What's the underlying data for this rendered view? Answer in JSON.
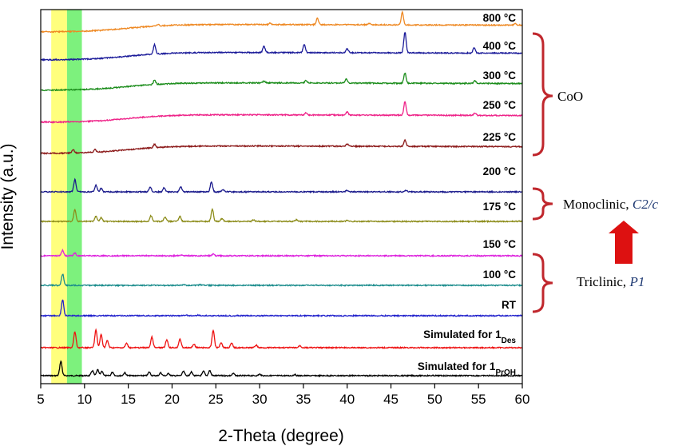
{
  "chart_data": {
    "type": "line",
    "xlabel": "2-Theta (degree)",
    "ylabel": "Intensity (a.u.)",
    "xlim": [
      5,
      60
    ],
    "xticks": [
      5,
      10,
      15,
      20,
      25,
      30,
      35,
      40,
      45,
      50,
      55,
      60
    ],
    "yticks": "none",
    "highlight_bands": [
      {
        "range": [
          6.2,
          8.0
        ],
        "color": "#ffff66"
      },
      {
        "range": [
          8.0,
          9.7
        ],
        "color": "#66ee66"
      }
    ],
    "series": [
      {
        "name": "Simulated for 1PrOH",
        "label_main": "Simulated for 1",
        "label_sub": "PrOH",
        "color": "#000000",
        "baseline": 0.0,
        "peaks": [
          [
            7.3,
            1.0
          ],
          [
            10.9,
            0.35
          ],
          [
            11.5,
            0.4
          ],
          [
            12.0,
            0.3
          ],
          [
            13.2,
            0.25
          ],
          [
            14.6,
            0.2
          ],
          [
            17.4,
            0.25
          ],
          [
            18.7,
            0.2
          ],
          [
            19.6,
            0.15
          ],
          [
            21.3,
            0.3
          ],
          [
            22.2,
            0.25
          ],
          [
            23.6,
            0.3
          ],
          [
            24.3,
            0.35
          ],
          [
            27.0,
            0.15
          ],
          [
            30.0,
            0.1
          ],
          [
            34.0,
            0.08
          ]
        ]
      },
      {
        "name": "Simulated for 1Des",
        "label_main": "Simulated for 1",
        "label_sub": "Des",
        "color": "#ee1111",
        "baseline": 0.0,
        "peaks": [
          [
            8.9,
            0.9
          ],
          [
            11.3,
            1.0
          ],
          [
            11.9,
            0.75
          ],
          [
            12.6,
            0.4
          ],
          [
            14.8,
            0.25
          ],
          [
            17.7,
            0.6
          ],
          [
            19.4,
            0.45
          ],
          [
            20.9,
            0.5
          ],
          [
            22.5,
            0.2
          ],
          [
            24.7,
            1.0
          ],
          [
            25.6,
            0.3
          ],
          [
            26.8,
            0.25
          ],
          [
            29.6,
            0.15
          ],
          [
            34.6,
            0.12
          ]
        ]
      },
      {
        "name": "RT",
        "label_main": "RT",
        "color": "#2222cc",
        "baseline": 0.0,
        "peaks": [
          [
            7.5,
            1.0
          ],
          [
            21.6,
            0.05
          ],
          [
            23.0,
            0.04
          ]
        ]
      },
      {
        "name": "100 °C",
        "label_main": "100 °C",
        "color": "#1a8c8c",
        "baseline": 0.0,
        "peaks": [
          [
            7.5,
            0.9
          ],
          [
            21.3,
            0.05
          ],
          [
            23.2,
            0.04
          ]
        ]
      },
      {
        "name": "150 °C",
        "label_main": "150 °C",
        "color": "#dd22dd",
        "baseline": 0.0,
        "peaks": [
          [
            7.5,
            0.5
          ],
          [
            8.9,
            0.25
          ],
          [
            21.0,
            0.05
          ],
          [
            24.7,
            0.15
          ]
        ]
      },
      {
        "name": "175 °C",
        "label_main": "175 °C",
        "color": "#8c8c1a",
        "baseline": 0.0,
        "peaks": [
          [
            8.9,
            0.85
          ],
          [
            11.3,
            0.35
          ],
          [
            11.9,
            0.25
          ],
          [
            17.6,
            0.4
          ],
          [
            19.2,
            0.3
          ],
          [
            20.9,
            0.35
          ],
          [
            24.6,
            0.85
          ],
          [
            25.7,
            0.2
          ],
          [
            29.3,
            0.1
          ],
          [
            34.2,
            0.12
          ],
          [
            40.0,
            0.05
          ]
        ]
      },
      {
        "name": "200 °C",
        "label_main": "200 °C",
        "color": "#1a1a8c",
        "baseline": 0.0,
        "peaks": [
          [
            8.9,
            0.85
          ],
          [
            11.3,
            0.45
          ],
          [
            11.9,
            0.25
          ],
          [
            17.5,
            0.35
          ],
          [
            19.1,
            0.3
          ],
          [
            21.0,
            0.35
          ],
          [
            24.5,
            0.7
          ],
          [
            25.8,
            0.15
          ],
          [
            40.0,
            0.1
          ],
          [
            46.7,
            0.08
          ]
        ]
      },
      {
        "name": "225 °C",
        "label_main": "225 °C",
        "color": "#8c1a1a",
        "baseline": 0.0,
        "hump": true,
        "peaks": [
          [
            8.7,
            0.3
          ],
          [
            11.2,
            0.25
          ],
          [
            18.0,
            0.3
          ],
          [
            40.0,
            0.2
          ],
          [
            46.6,
            0.55
          ]
        ]
      },
      {
        "name": "250 °C",
        "label_main": "250 °C",
        "color": "#ee2288",
        "baseline": 0.0,
        "hump": true,
        "peaks": [
          [
            35.3,
            0.15
          ],
          [
            40.0,
            0.2
          ],
          [
            46.6,
            0.85
          ],
          [
            54.6,
            0.15
          ]
        ]
      },
      {
        "name": "300 °C",
        "label_main": "300 °C",
        "color": "#1a8c1a",
        "baseline": 0.0,
        "hump": true,
        "peaks": [
          [
            18.0,
            0.35
          ],
          [
            30.5,
            0.15
          ],
          [
            35.3,
            0.2
          ],
          [
            39.9,
            0.3
          ],
          [
            46.6,
            0.8
          ],
          [
            54.6,
            0.2
          ]
        ]
      },
      {
        "name": "400 °C",
        "label_main": "400 °C",
        "color": "#1a1a99",
        "baseline": 0.0,
        "hump": true,
        "peaks": [
          [
            18.0,
            0.45
          ],
          [
            30.5,
            0.3
          ],
          [
            35.1,
            0.4
          ],
          [
            40.0,
            0.2
          ],
          [
            46.6,
            1.0
          ],
          [
            54.5,
            0.25
          ]
        ]
      },
      {
        "name": "800 °C",
        "label_main": "800 °C",
        "color": "#ee8822",
        "baseline": 0.0,
        "hump": true,
        "peaks": [
          [
            18.4,
            0.1
          ],
          [
            31.2,
            0.1
          ],
          [
            36.6,
            0.45
          ],
          [
            42.5,
            0.1
          ],
          [
            46.3,
            0.9
          ],
          [
            59.2,
            0.1
          ]
        ]
      }
    ],
    "annotations": [
      {
        "text": "CoO",
        "spans": [
          "225 °C",
          "800 °C"
        ]
      },
      {
        "text": "Monoclinic, ",
        "italic": "C2/c",
        "spans": [
          "175 °C",
          "200 °C"
        ]
      },
      {
        "text": "Triclinic, ",
        "italic": "P1",
        "spans": [
          "RT",
          "150 °C"
        ]
      }
    ],
    "arrow": {
      "direction": "up",
      "color": "#dd1111"
    }
  }
}
